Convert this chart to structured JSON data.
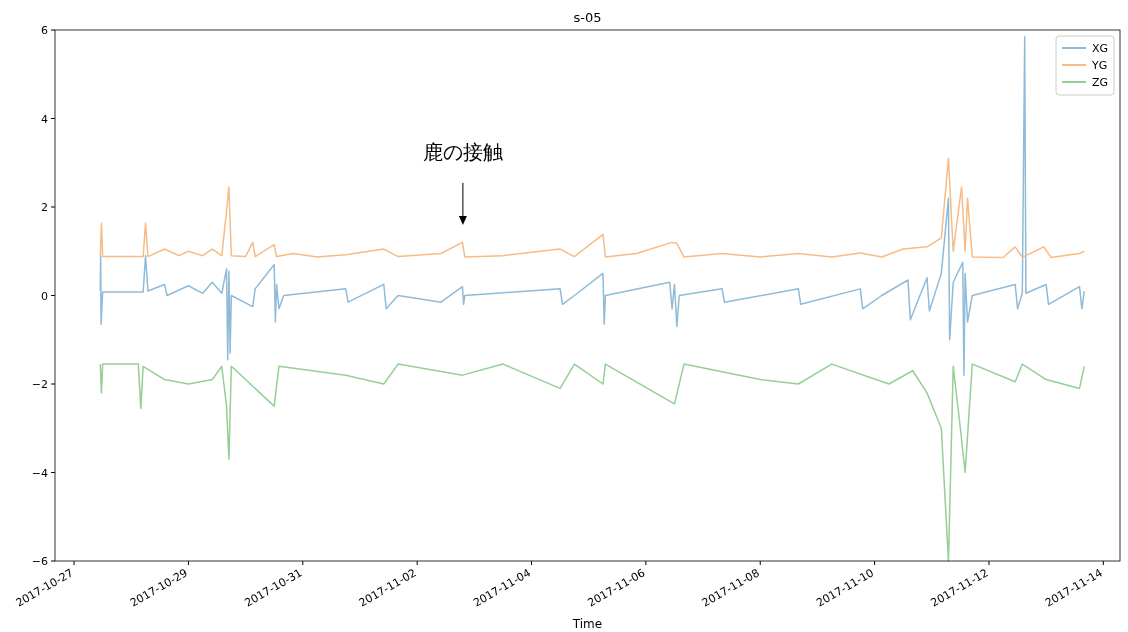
{
  "chart_data": {
    "type": "line",
    "title": "s-05",
    "xlabel": "Time",
    "xlim": [
      "2017-10-26T16:00",
      "2017-11-14T07:00"
    ],
    "xticks": [
      "2017-10-27",
      "2017-10-29",
      "2017-10-31",
      "2017-11-02",
      "2017-11-04",
      "2017-11-06",
      "2017-11-08",
      "2017-11-10",
      "2017-11-12",
      "2017-11-14"
    ],
    "ylim": [
      -6,
      6
    ],
    "yticks": [
      -6,
      -4,
      -2,
      0,
      2,
      4,
      6
    ],
    "grid": false,
    "legend": "top right",
    "annotations": [
      "鹿の接触"
    ],
    "series": [
      {
        "name": "XG",
        "color": "#8fbbd9",
        "x": [
          "2017-10-27T11:00",
          "2017-10-27T11:10",
          "2017-10-27T11:20",
          "2017-10-27T12:00",
          "2017-10-28T05:00",
          "2017-10-28T06:00",
          "2017-10-28T07:00",
          "2017-10-28T14:00",
          "2017-10-28T15:00",
          "2017-10-29T00:00",
          "2017-10-29T06:00",
          "2017-10-29T10:00",
          "2017-10-29T14:00",
          "2017-10-29T16:00",
          "2017-10-29T16:30",
          "2017-10-29T17:00",
          "2017-10-29T17:30",
          "2017-10-29T18:00",
          "2017-10-30T03:00",
          "2017-10-30T04:00",
          "2017-10-30T12:00",
          "2017-10-30T12:30",
          "2017-10-30T13:00",
          "2017-10-30T14:00",
          "2017-10-30T16:00",
          "2017-10-31T18:00",
          "2017-10-31T19:00",
          "2017-11-01T10:00",
          "2017-11-01T11:00",
          "2017-11-01T16:00",
          "2017-11-02T10:00",
          "2017-11-02T19:00",
          "2017-11-02T19:30",
          "2017-11-02T20:00",
          "2017-11-04T12:00",
          "2017-11-04T13:00",
          "2017-11-04T18:00",
          "2017-11-05T06:00",
          "2017-11-05T06:30",
          "2017-11-05T07:00",
          "2017-11-06T10:00",
          "2017-11-06T11:00",
          "2017-11-06T12:00",
          "2017-11-06T13:00",
          "2017-11-06T14:00",
          "2017-11-07T08:00",
          "2017-11-07T09:00",
          "2017-11-08T16:00",
          "2017-11-08T17:00",
          "2017-11-09T18:00",
          "2017-11-09T19:00",
          "2017-11-10T03:00",
          "2017-11-10T14:00",
          "2017-11-10T15:00",
          "2017-11-10T22:00",
          "2017-11-10T23:00",
          "2017-11-11T04:00",
          "2017-11-11T07:00",
          "2017-11-11T07:30",
          "2017-11-11T09:00",
          "2017-11-11T13:00",
          "2017-11-11T13:30",
          "2017-11-11T14:00",
          "2017-11-11T15:00",
          "2017-11-11T17:00",
          "2017-11-12T11:00",
          "2017-11-12T12:00",
          "2017-11-12T14:00",
          "2017-11-12T15:00",
          "2017-11-12T15:30",
          "2017-11-13T00:00",
          "2017-11-13T01:00",
          "2017-11-13T14:00",
          "2017-11-13T15:00",
          "2017-11-13T16:00"
        ],
        "values": [
          0.1,
          0.9,
          -0.65,
          0.08,
          0.08,
          0.9,
          0.1,
          0.25,
          0.0,
          0.22,
          0.05,
          0.3,
          0.05,
          0.6,
          -1.45,
          0.55,
          -1.3,
          0.0,
          -0.25,
          0.15,
          0.7,
          -0.6,
          0.25,
          -0.3,
          0.0,
          0.15,
          -0.15,
          0.25,
          -0.3,
          0.0,
          -0.15,
          0.2,
          -0.2,
          0.0,
          0.15,
          -0.2,
          0.0,
          0.5,
          -0.65,
          0.0,
          0.3,
          -0.3,
          0.25,
          -0.7,
          0.0,
          0.15,
          -0.15,
          0.15,
          -0.2,
          0.15,
          -0.3,
          0.0,
          0.35,
          -0.55,
          0.4,
          -0.35,
          0.5,
          2.2,
          -1.0,
          0.3,
          0.75,
          -1.8,
          0.5,
          -0.6,
          0.0,
          0.25,
          -0.3,
          0.05,
          5.85,
          0.05,
          0.25,
          -0.2,
          0.2,
          -0.3,
          0.1
        ]
      },
      {
        "name": "YG",
        "color": "#f7bb86",
        "x": [
          "2017-10-27T11:00",
          "2017-10-27T11:30",
          "2017-10-27T12:00",
          "2017-10-28T05:00",
          "2017-10-28T06:00",
          "2017-10-28T07:00",
          "2017-10-28T14:00",
          "2017-10-28T20:00",
          "2017-10-29T00:00",
          "2017-10-29T06:00",
          "2017-10-29T10:00",
          "2017-10-29T14:00",
          "2017-10-29T16:00",
          "2017-10-29T17:00",
          "2017-10-29T18:00",
          "2017-10-30T00:00",
          "2017-10-30T03:00",
          "2017-10-30T04:00",
          "2017-10-30T12:00",
          "2017-10-30T13:00",
          "2017-10-30T20:00",
          "2017-10-31T06:00",
          "2017-10-31T18:00",
          "2017-11-01T10:00",
          "2017-11-01T16:00",
          "2017-11-02T10:00",
          "2017-11-02T19:00",
          "2017-11-02T20:00",
          "2017-11-03T12:00",
          "2017-11-04T12:00",
          "2017-11-04T18:00",
          "2017-11-05T06:00",
          "2017-11-05T07:00",
          "2017-11-05T20:00",
          "2017-11-06T11:00",
          "2017-11-06T13:00",
          "2017-11-06T16:00",
          "2017-11-07T08:00",
          "2017-11-08T00:00",
          "2017-11-08T16:00",
          "2017-11-09T06:00",
          "2017-11-09T18:00",
          "2017-11-10T03:00",
          "2017-11-10T12:00",
          "2017-11-10T22:00",
          "2017-11-11T04:00",
          "2017-11-11T07:00",
          "2017-11-11T09:00",
          "2017-11-11T12:30",
          "2017-11-11T14:00",
          "2017-11-11T15:00",
          "2017-11-11T17:00",
          "2017-11-12T06:00",
          "2017-11-12T11:00",
          "2017-11-12T14:00",
          "2017-11-12T23:00",
          "2017-11-13T02:00",
          "2017-11-13T14:00",
          "2017-11-13T16:00"
        ],
        "values": [
          0.9,
          1.64,
          0.88,
          0.88,
          1.63,
          0.88,
          1.05,
          0.9,
          1.0,
          0.9,
          1.05,
          0.9,
          1.9,
          2.45,
          0.9,
          0.88,
          1.2,
          0.88,
          1.15,
          0.88,
          0.95,
          0.87,
          0.92,
          1.05,
          0.88,
          0.95,
          1.2,
          0.87,
          0.9,
          1.05,
          0.88,
          1.38,
          0.87,
          0.95,
          1.2,
          1.18,
          0.87,
          0.95,
          0.87,
          0.95,
          0.87,
          0.96,
          0.87,
          1.05,
          1.1,
          1.3,
          3.1,
          1.0,
          2.45,
          1.0,
          2.2,
          0.87,
          0.86,
          1.1,
          0.86,
          1.1,
          0.86,
          0.95,
          1.0
        ]
      },
      {
        "name": "ZG",
        "color": "#95cf95",
        "x": [
          "2017-10-27T11:00",
          "2017-10-27T11:30",
          "2017-10-27T12:00",
          "2017-10-28T03:00",
          "2017-10-28T04:00",
          "2017-10-28T05:00",
          "2017-10-28T14:00",
          "2017-10-29T00:00",
          "2017-10-29T10:00",
          "2017-10-29T14:00",
          "2017-10-29T16:00",
          "2017-10-29T17:00",
          "2017-10-29T18:00",
          "2017-10-30T12:00",
          "2017-10-30T14:00",
          "2017-10-31T18:00",
          "2017-11-01T10:00",
          "2017-11-01T16:00",
          "2017-11-02T19:00",
          "2017-11-03T12:00",
          "2017-11-04T12:00",
          "2017-11-04T18:00",
          "2017-11-05T06:00",
          "2017-11-05T07:00",
          "2017-11-06T12:00",
          "2017-11-06T16:00",
          "2017-11-08T00:00",
          "2017-11-08T16:00",
          "2017-11-09T06:00",
          "2017-11-10T06:00",
          "2017-11-10T16:00",
          "2017-11-10T22:00",
          "2017-11-11T04:00",
          "2017-11-11T07:00",
          "2017-11-11T09:00",
          "2017-11-11T12:00",
          "2017-11-11T14:00",
          "2017-11-11T17:00",
          "2017-11-12T11:00",
          "2017-11-12T14:00",
          "2017-11-13T00:00",
          "2017-11-13T14:00",
          "2017-11-13T16:00"
        ],
        "values": [
          -1.55,
          -2.2,
          -1.55,
          -1.55,
          -2.55,
          -1.6,
          -1.9,
          -2.0,
          -1.9,
          -1.6,
          -2.5,
          -3.7,
          -1.6,
          -2.5,
          -1.6,
          -1.8,
          -2.0,
          -1.55,
          -1.8,
          -1.55,
          -2.1,
          -1.55,
          -2.0,
          -1.55,
          -2.45,
          -1.55,
          -1.9,
          -2.0,
          -1.55,
          -2.0,
          -1.7,
          -2.2,
          -3.0,
          -6.0,
          -1.6,
          -3.0,
          -4.0,
          -1.55,
          -1.95,
          -1.55,
          -1.9,
          -2.1,
          -1.6
        ]
      }
    ]
  }
}
